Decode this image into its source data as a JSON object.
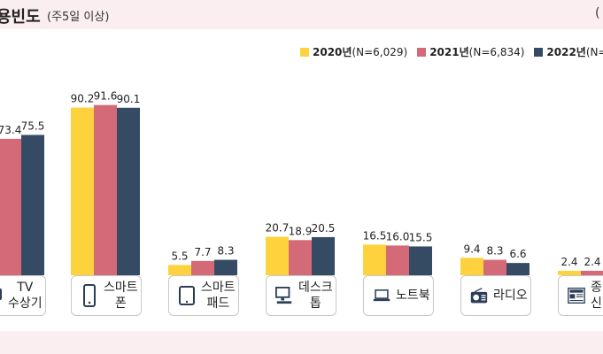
{
  "header": {
    "title": "용빈도",
    "subtitle": "(주5일 이상)",
    "right_mark": "("
  },
  "legend": [
    {
      "year": "2020년",
      "n": "(N=6,029)",
      "color": "#fdd23c"
    },
    {
      "year": "2021년",
      "n": "(N=6,834)",
      "color": "#d46a77"
    },
    {
      "year": "2022년",
      "n": "(N=",
      "color": "#354b64"
    }
  ],
  "chart_data": {
    "type": "bar",
    "title": "",
    "xlabel": "",
    "ylabel": "",
    "ylim": [
      0,
      100
    ],
    "categories": [
      "TV 수상기",
      "스마트폰",
      "스마트패드",
      "데스크톱",
      "노트북",
      "라디오",
      "종이신문"
    ],
    "category_labels": [
      "TV\n수상기",
      "스마트\n폰",
      "스마트\n패드",
      "데스크\n톱",
      "노트북",
      "라디오",
      "종\n신"
    ],
    "category_icons": [
      "tv-icon",
      "smartphone-icon",
      "tablet-icon",
      "desktop-icon",
      "laptop-icon",
      "radio-icon",
      "newspaper-icon"
    ],
    "series": [
      {
        "name": "2020년",
        "color": "#fdd23c",
        "values": [
          null,
          90.2,
          5.5,
          20.7,
          16.5,
          9.4,
          2.4
        ],
        "labels": [
          "",
          "90.2",
          "5.5",
          "20.7",
          "16.5",
          "9.4",
          "2.4"
        ]
      },
      {
        "name": "2021년",
        "color": "#d46a77",
        "values": [
          73.4,
          91.6,
          7.7,
          18.9,
          16.0,
          8.3,
          2.4
        ],
        "labels": [
          "73.4",
          "91.6",
          "7.7",
          "18.9",
          "16.0",
          "8.3",
          "2.4"
        ]
      },
      {
        "name": "2022년",
        "color": "#354b64",
        "values": [
          75.5,
          90.1,
          8.3,
          20.5,
          15.5,
          6.6,
          null
        ],
        "labels": [
          "75.5",
          "90.1",
          "8.3",
          "20.5",
          "15.5",
          "6.6",
          ""
        ]
      }
    ]
  }
}
